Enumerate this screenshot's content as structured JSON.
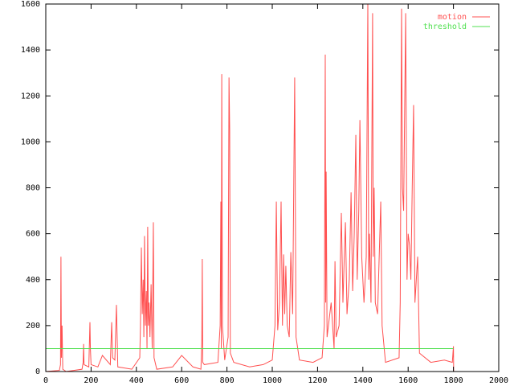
{
  "chart_data": {
    "type": "line",
    "xlim": [
      0,
      2000
    ],
    "xticks": [
      0,
      200,
      400,
      600,
      800,
      1000,
      1200,
      1400,
      1600,
      1800,
      2000
    ],
    "ylim": [
      0,
      1600
    ],
    "yticks": [
      0,
      200,
      400,
      600,
      800,
      1000,
      1200,
      1400,
      1600
    ],
    "legend": "upper right",
    "series": [
      {
        "name": "motion",
        "color": "#ff5050",
        "x": [
          0,
          60,
          65,
          67,
          69,
          72,
          75,
          90,
          160,
          165,
          167,
          169,
          190,
          195,
          197,
          200,
          230,
          250,
          285,
          291,
          295,
          305,
          312,
          318,
          380,
          415,
          418,
          422,
          426,
          430,
          433,
          436,
          440,
          444,
          447,
          450,
          453,
          456,
          460,
          465,
          468,
          470,
          475,
          478,
          490,
          560,
          600,
          650,
          685,
          689,
          691,
          693,
          700,
          760,
          770,
          773,
          775,
          777,
          780,
          790,
          805,
          809,
          812,
          815,
          830,
          900,
          960,
          1000,
          1012,
          1018,
          1024,
          1032,
          1039,
          1045,
          1050,
          1055,
          1060,
          1066,
          1075,
          1082,
          1090,
          1099,
          1105,
          1120,
          1180,
          1220,
          1230,
          1234,
          1236,
          1238,
          1242,
          1260,
          1273,
          1277,
          1282,
          1295,
          1305,
          1312,
          1318,
          1323,
          1330,
          1340,
          1348,
          1355,
          1362,
          1369,
          1375,
          1382,
          1387,
          1395,
          1405,
          1415,
          1422,
          1426,
          1429,
          1436,
          1443,
          1446,
          1450,
          1455,
          1465,
          1479,
          1485,
          1500,
          1560,
          1565,
          1571,
          1575,
          1580,
          1589,
          1595,
          1600,
          1606,
          1612,
          1618,
          1624,
          1630,
          1642,
          1650,
          1700,
          1760,
          1795,
          1800,
          1801
        ],
        "values": [
          0,
          5,
          30,
          500,
          60,
          200,
          10,
          0,
          10,
          40,
          120,
          30,
          20,
          215,
          100,
          30,
          20,
          70,
          30,
          215,
          60,
          50,
          290,
          20,
          10,
          60,
          200,
          540,
          250,
          400,
          150,
          590,
          200,
          350,
          100,
          630,
          200,
          300,
          150,
          380,
          200,
          100,
          650,
          60,
          10,
          20,
          70,
          20,
          10,
          130,
          490,
          40,
          30,
          40,
          200,
          740,
          100,
          1295,
          200,
          50,
          150,
          1280,
          1050,
          80,
          40,
          20,
          30,
          50,
          200,
          740,
          180,
          300,
          740,
          200,
          510,
          250,
          460,
          200,
          150,
          520,
          250,
          1280,
          150,
          50,
          40,
          60,
          200,
          1380,
          300,
          870,
          150,
          300,
          100,
          480,
          150,
          200,
          690,
          300,
          500,
          650,
          250,
          400,
          780,
          350,
          600,
          1030,
          400,
          700,
          1095,
          500,
          300,
          500,
          1600,
          400,
          600,
          300,
          1560,
          500,
          800,
          300,
          250,
          740,
          200,
          40,
          60,
          300,
          1580,
          800,
          700,
          1560,
          400,
          600,
          550,
          400,
          800,
          1160,
          300,
          500,
          80,
          40,
          50,
          40,
          110,
          0
        ]
      },
      {
        "name": "threshold",
        "color": "#50e050",
        "x": [
          0,
          1800
        ],
        "values": [
          100,
          100
        ]
      }
    ]
  }
}
